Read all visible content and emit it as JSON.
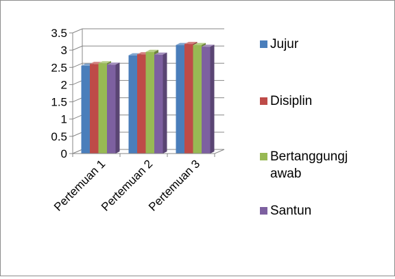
{
  "chart_data": {
    "type": "bar",
    "categories": [
      "Pertemuan 1",
      "Pertemuan 2",
      "Pertemuan 3"
    ],
    "series": [
      {
        "name": "Jujur",
        "values": [
          2.55,
          2.85,
          3.15
        ]
      },
      {
        "name": "Disiplin",
        "values": [
          2.6,
          2.88,
          3.18
        ]
      },
      {
        "name": "Bertanggungjawab",
        "values": [
          2.62,
          2.95,
          3.15
        ]
      },
      {
        "name": "Santun",
        "values": [
          2.58,
          2.87,
          3.1
        ]
      }
    ],
    "legend_lines": [
      [
        "Jujur"
      ],
      [
        "Disiplin"
      ],
      [
        "Bertanggungj",
        "awab"
      ],
      [
        "Santun"
      ]
    ],
    "ylim": [
      0,
      3.5
    ],
    "yticks": [
      "0",
      "0.5",
      "1",
      "1.5",
      "2",
      "2.5",
      "3",
      "3.5"
    ],
    "legend_position": "right",
    "grid": true,
    "colors": {
      "series": [
        "#4a7ebb",
        "#be4b48",
        "#98b954",
        "#7d60a0"
      ],
      "grid": "#868686"
    }
  }
}
